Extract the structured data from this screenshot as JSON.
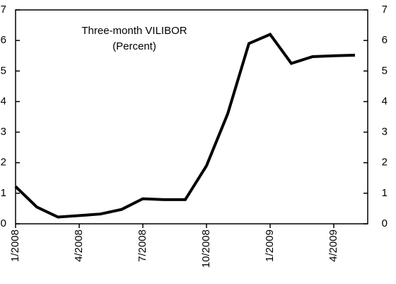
{
  "chart_data": {
    "type": "line",
    "title": "Three-month VILIBOR",
    "subtitle": "(Percent)",
    "categories": [
      "1/2008",
      null,
      null,
      "4/2008",
      null,
      null,
      "7/2008",
      null,
      null,
      "10/2008",
      null,
      null,
      "1/2009",
      null,
      null,
      "4/2009",
      null
    ],
    "series": [
      {
        "name": "Three-month VILIBOR",
        "color": "#000000",
        "values": [
          1.22,
          0.55,
          0.22,
          0.27,
          0.32,
          0.47,
          0.82,
          0.79,
          0.79,
          1.9,
          3.6,
          5.9,
          6.2,
          5.25,
          5.47,
          5.5,
          5.52
        ]
      }
    ],
    "ylim": [
      0,
      7
    ],
    "yticks": [
      0,
      1,
      2,
      3,
      4,
      5,
      6,
      7
    ],
    "grid": false
  }
}
